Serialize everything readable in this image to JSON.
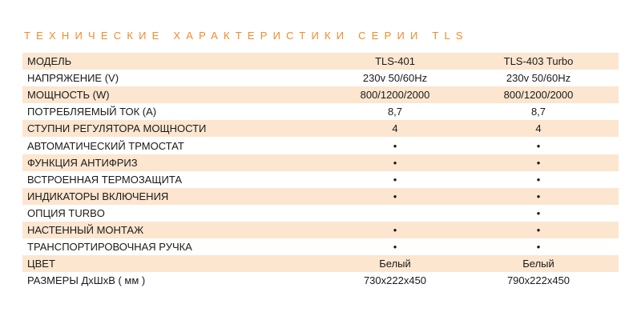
{
  "title": "ТЕХНИЧЕСКИЕ ХАРАКТЕРИСТИКИ СЕРИИ TLS",
  "rows": [
    {
      "label": "МОДЕЛЬ",
      "v1": "TLS-401",
      "v2": "TLS-403 Turbo"
    },
    {
      "label": "НАПРЯЖЕНИЕ (V)",
      "v1": "230v 50/60Hz",
      "v2": "230v 50/60Hz"
    },
    {
      "label": "МОЩНОСТЬ (W)",
      "v1": "800/1200/2000",
      "v2": "800/1200/2000"
    },
    {
      "label": "ПОТРЕБЛЯЕМЫЙ ТОК (A)",
      "v1": "8,7",
      "v2": "8,7"
    },
    {
      "label": "СТУПНИ РЕГУЛЯТОРА МОЩНОСТИ",
      "v1": "4",
      "v2": "4"
    },
    {
      "label": "АВТОМАТИЧЕСКИЙ ТРМОСТАТ",
      "v1": "•",
      "v2": "•"
    },
    {
      "label": "ФУНКЦИЯ АНТИФРИЗ",
      "v1": "•",
      "v2": "•"
    },
    {
      "label": "ВСТРОЕННАЯ ТЕРМОЗАЩИТА",
      "v1": "•",
      "v2": "•"
    },
    {
      "label": "ИНДИКАТОРЫ ВКЛЮЧЕНИЯ",
      "v1": "•",
      "v2": "•"
    },
    {
      "label": "ОПЦИЯ TURBO",
      "v1": "",
      "v2": "•"
    },
    {
      "label": "НАСТЕННЫЙ МОНТАЖ",
      "v1": "•",
      "v2": "•"
    },
    {
      "label": "ТРАНСПОРТИРОВОЧНАЯ РУЧКА",
      "v1": "•",
      "v2": "•"
    },
    {
      "label": "ЦВЕТ",
      "v1": "Белый",
      "v2": "Белый"
    },
    {
      "label": "РАЗМЕРЫ ДхШхВ ( мм )",
      "v1": "730x222x450",
      "v2": "790x222x450"
    }
  ],
  "colors": {
    "accent": "#f28c28",
    "stripe": "#fce6d0"
  }
}
